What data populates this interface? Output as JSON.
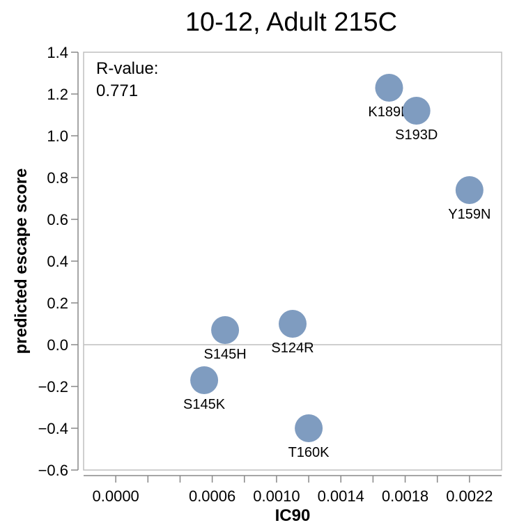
{
  "chart_data": {
    "type": "scatter",
    "title": "10-12, Adult 215C",
    "xlabel": "IC90",
    "ylabel": "predicted escape score",
    "xlim": [
      -0.0002,
      0.0024
    ],
    "ylim": [
      -0.6,
      1.4
    ],
    "x_ticks": [
      "0.0000",
      "0.0006",
      "0.0010",
      "0.0014",
      "0.0018",
      "0.0022"
    ],
    "x_tick_values": [
      0.0,
      0.0006,
      0.001,
      0.0014,
      0.0018,
      0.0022
    ],
    "x_minor_ticks": [
      0.0002,
      0.0004,
      0.0008,
      0.0012,
      0.0016,
      0.002
    ],
    "y_ticks": [
      "1.4",
      "1.2",
      "1.0",
      "0.8",
      "0.6",
      "0.4",
      "0.2",
      "0.0",
      "−0.2",
      "−0.4",
      "−0.6"
    ],
    "y_tick_values": [
      1.4,
      1.2,
      1.0,
      0.8,
      0.6,
      0.4,
      0.2,
      0.0,
      -0.2,
      -0.4,
      -0.6
    ],
    "zero_line": true,
    "grid": false,
    "point_color": "#7f9cc0",
    "annotation": {
      "label": "R-value:",
      "value": "0.771"
    },
    "points": [
      {
        "label": "K189E",
        "x": 0.0017,
        "y": 1.23
      },
      {
        "label": "S193D",
        "x": 0.00187,
        "y": 1.12
      },
      {
        "label": "Y159N",
        "x": 0.0022,
        "y": 0.74
      },
      {
        "label": "S124R",
        "x": 0.0011,
        "y": 0.1
      },
      {
        "label": "S145H",
        "x": 0.00068,
        "y": 0.07
      },
      {
        "label": "S145K",
        "x": 0.00055,
        "y": -0.17
      },
      {
        "label": "T160K",
        "x": 0.0012,
        "y": -0.4
      }
    ]
  }
}
